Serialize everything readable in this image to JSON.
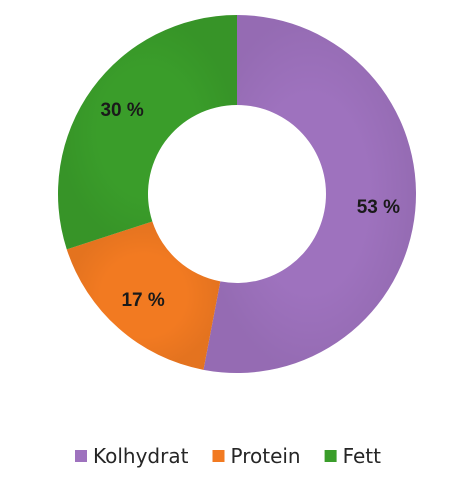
{
  "chart_data": {
    "type": "pie",
    "variant": "donut",
    "categories": [
      "Kolhydrat",
      "Protein",
      "Fett"
    ],
    "values": [
      53,
      17,
      30
    ],
    "data_labels": [
      "53 %",
      "17 %",
      "30 %"
    ],
    "colors": [
      "#9E72BE",
      "#F27A21",
      "#3A9D2A"
    ],
    "legend": {
      "placement": "bottom",
      "entries": [
        "Kolhydrat",
        "Protein",
        "Fett"
      ]
    }
  }
}
